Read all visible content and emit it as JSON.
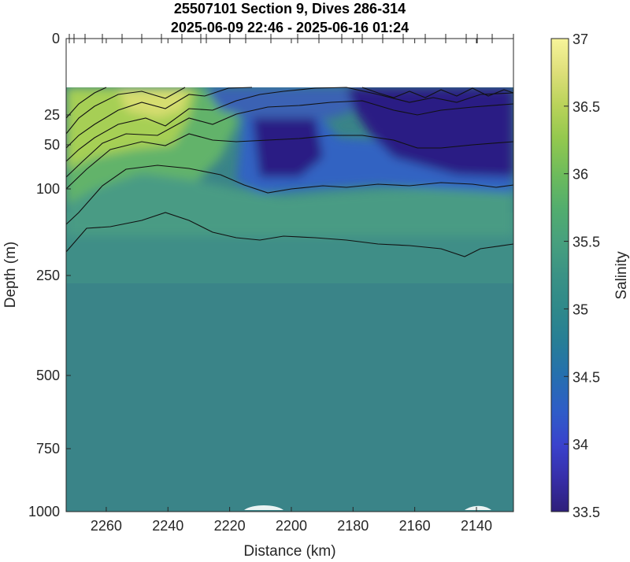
{
  "chart_data": {
    "type": "heatmap",
    "title": [
      "25507101 Section 9, Dives 286-314",
      "2025-06-09 22:46 - 2025-06-16 01:24"
    ],
    "xlabel": "Distance (km)",
    "ylabel": "Depth (m)",
    "colorbar_label": "Salinity",
    "x_reversed": true,
    "xlim": [
      2273,
      2128
    ],
    "x_ticks": [
      2260,
      2240,
      2220,
      2200,
      2180,
      2160,
      2140
    ],
    "y_ticks": [
      0,
      25,
      50,
      100,
      250,
      500,
      750,
      1000
    ],
    "y_reversed": true,
    "colorbar_ticks": [
      "33.5",
      "34",
      "34.5",
      "35",
      "35.5",
      "36",
      "36.5",
      "37"
    ],
    "clim": [
      33.5,
      37
    ],
    "colormap": "parula-like (dark blue → green → pale yellow)",
    "features": [
      {
        "region": "near surface, 2273-2225 km, 15-90 m",
        "salinity": 36.4
      },
      {
        "region": "near surface, 2215-2195 km, 25-90 m",
        "salinity": 33.6
      },
      {
        "region": "near surface, 2175-2128 km, 15-80 m",
        "salinity": 33.5
      },
      {
        "region": "150-250 m, all distances",
        "salinity": 35.3
      },
      {
        "region": "below 300 m",
        "salinity": 35.1
      }
    ],
    "surface_gap_depth_m": 15
  }
}
